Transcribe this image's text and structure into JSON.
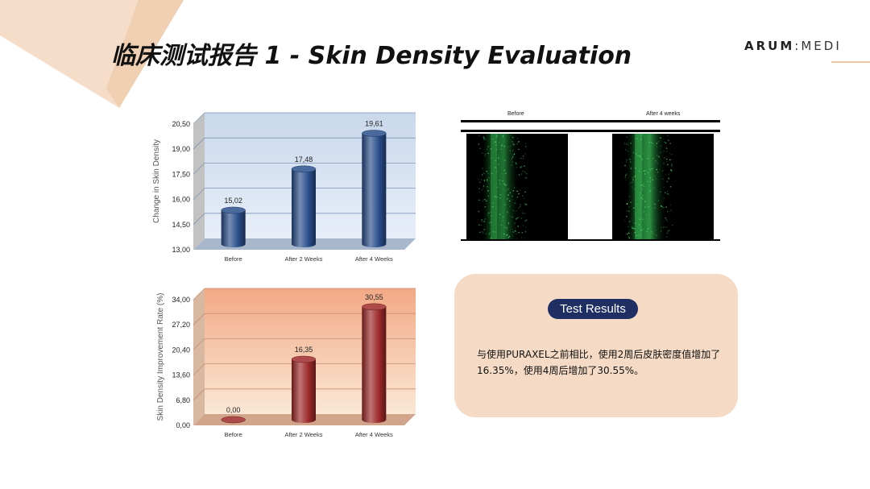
{
  "header": {
    "title": "临床测试报告 1 - Skin Density Evaluation",
    "brand_part1": "ARUM",
    "brand_sep": ":",
    "brand_part2": "MEDI"
  },
  "colors": {
    "accent_peach": "#f5dbc5",
    "badge_navy": "#1f2f63",
    "bar_blue": "#2a4f8c",
    "bar_red": "#9e2a2a"
  },
  "chart_data": [
    {
      "type": "bar",
      "categories": [
        "Before",
        "After 2 Weeks",
        "After 4 Weeks"
      ],
      "values": [
        15.02,
        17.48,
        19.61
      ],
      "value_labels": [
        "15,02",
        "17,48",
        "19,61"
      ],
      "ylabel": "Change in Skin Density",
      "yticks": [
        "13,00",
        "14,50",
        "16,00",
        "17,50",
        "19,00",
        "20,50"
      ],
      "ylim": [
        13.0,
        20.5
      ],
      "grid": true,
      "style": "3d-cylinder",
      "color": "#2a4f8c"
    },
    {
      "type": "bar",
      "categories": [
        "Before",
        "After 2 Weeks",
        "After 4 Weeks"
      ],
      "values": [
        0.0,
        16.35,
        30.55
      ],
      "value_labels": [
        "0,00",
        "16,35",
        "30,55"
      ],
      "ylabel": "Skin Density Improvement Rate (%)",
      "yticks": [
        "0,00",
        "6,80",
        "13,60",
        "20,40",
        "27,20",
        "34,00"
      ],
      "ylim": [
        0.0,
        34.0
      ],
      "grid": true,
      "style": "3d-cylinder",
      "color": "#9e2a2a"
    }
  ],
  "scan": {
    "before_label": "Before",
    "after_label": "After 4 weeks"
  },
  "results": {
    "badge": "Test Results",
    "text": "与使用PURAXEL之前相比，使用2周后皮肤密度值增加了16.35%，使用4周后增加了30.55%。"
  }
}
